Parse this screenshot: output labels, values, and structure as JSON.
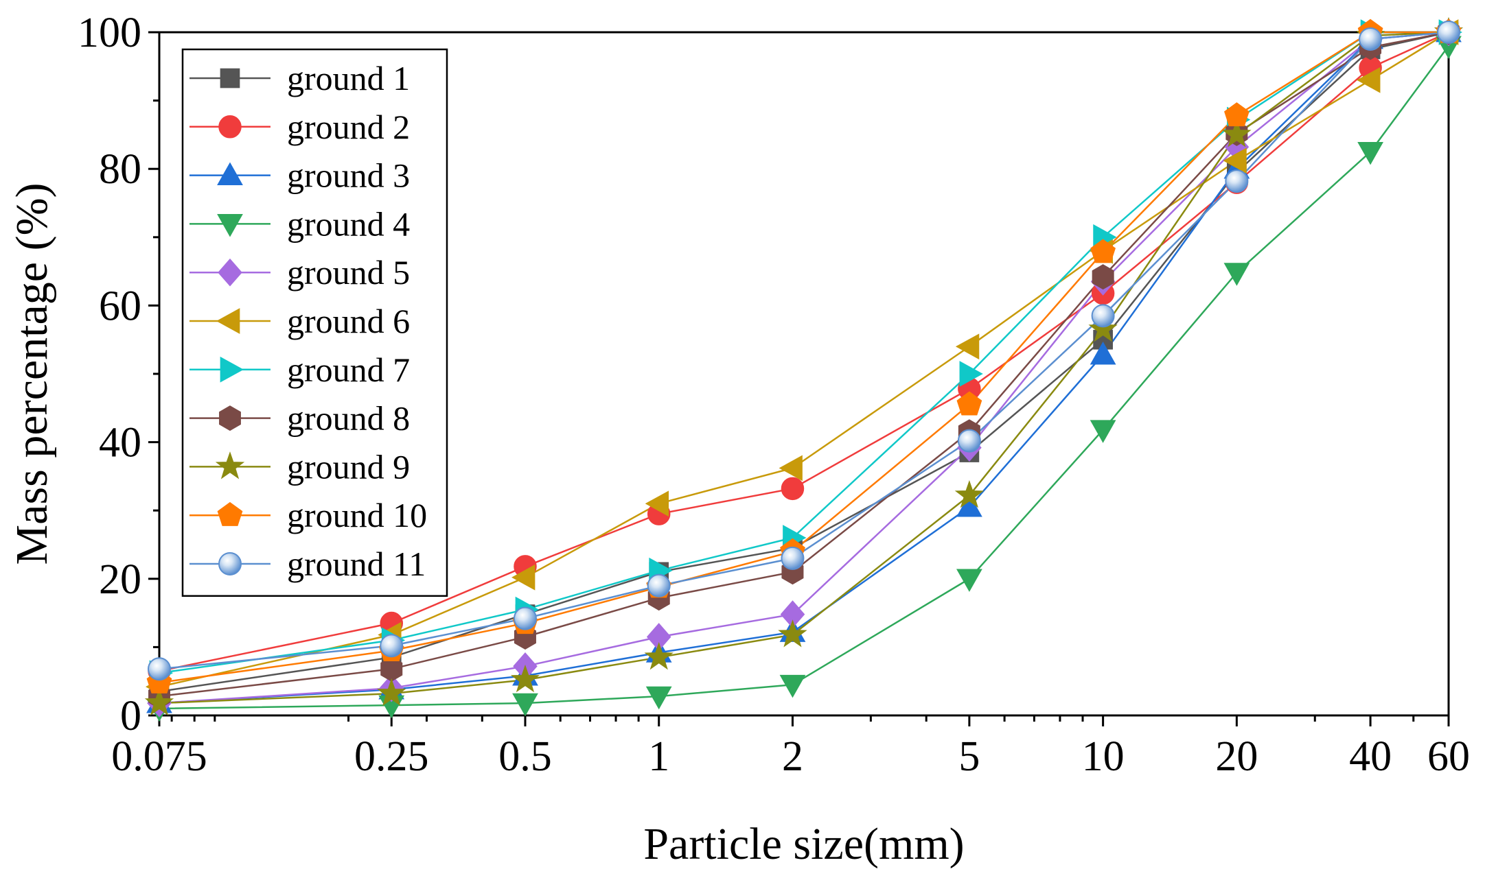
{
  "chart_data": {
    "type": "line",
    "title": "",
    "xlabel": "Particle size(mm)",
    "ylabel": "Mass percentage (%)",
    "xscale": "log",
    "xlim": [
      0.075,
      60
    ],
    "ylim": [
      0,
      100
    ],
    "grid": false,
    "legend_position": "top-left",
    "x_ticks": [
      {
        "value": 0.075,
        "label": "0.075"
      },
      {
        "value": 0.25,
        "label": "0.25"
      },
      {
        "value": 0.5,
        "label": "0.5"
      },
      {
        "value": 1,
        "label": "1"
      },
      {
        "value": 2,
        "label": "2"
      },
      {
        "value": 5,
        "label": "5"
      },
      {
        "value": 10,
        "label": "10"
      },
      {
        "value": 20,
        "label": "20"
      },
      {
        "value": 40,
        "label": "40"
      },
      {
        "value": 60,
        "label": "60"
      }
    ],
    "y_ticks": [
      {
        "value": 0,
        "label": "0"
      },
      {
        "value": 20,
        "label": "20"
      },
      {
        "value": 40,
        "label": "40"
      },
      {
        "value": 60,
        "label": "60"
      },
      {
        "value": 80,
        "label": "80"
      },
      {
        "value": 100,
        "label": "100"
      }
    ],
    "x": [
      0.075,
      0.25,
      0.5,
      1,
      2,
      5,
      10,
      20,
      40,
      60
    ],
    "series": [
      {
        "name": "ground 1",
        "color": "#555555",
        "marker": "square",
        "values": [
          3.5,
          8.5,
          14.8,
          21.0,
          24.5,
          38.5,
          55.0,
          79.5,
          97.5,
          100
        ]
      },
      {
        "name": "ground 2",
        "color": "#f03c3c",
        "marker": "circle",
        "values": [
          6.5,
          13.5,
          21.8,
          29.5,
          33.2,
          47.8,
          61.8,
          78.0,
          94.8,
          100
        ]
      },
      {
        "name": "ground 3",
        "color": "#1f6fd6",
        "marker": "triangle-up",
        "values": [
          1.8,
          3.8,
          5.8,
          9.2,
          12.2,
          30.5,
          52.8,
          80.0,
          99.0,
          100
        ]
      },
      {
        "name": "ground 4",
        "color": "#2ea85a",
        "marker": "triangle-down",
        "values": [
          1.0,
          1.5,
          1.8,
          2.8,
          4.5,
          20.0,
          41.8,
          64.8,
          82.5,
          98.0
        ]
      },
      {
        "name": "ground 5",
        "color": "#a66be0",
        "marker": "diamond",
        "values": [
          1.8,
          4.0,
          7.2,
          11.5,
          14.8,
          39.2,
          63.5,
          83.2,
          99.0,
          100
        ]
      },
      {
        "name": "ground 6",
        "color": "#c89a0a",
        "marker": "triangle-left",
        "values": [
          4.2,
          11.8,
          20.2,
          31.0,
          36.2,
          54.0,
          68.0,
          81.2,
          93.0,
          100
        ]
      },
      {
        "name": "ground 7",
        "color": "#10c8c8",
        "marker": "triangle-right",
        "values": [
          6.2,
          11.0,
          15.5,
          21.2,
          26.0,
          50.0,
          70.0,
          87.2,
          100,
          100
        ]
      },
      {
        "name": "ground 8",
        "color": "#7a4a46",
        "marker": "hexagon",
        "values": [
          2.8,
          6.8,
          11.5,
          17.2,
          21.0,
          41.5,
          64.2,
          85.2,
          97.8,
          100
        ]
      },
      {
        "name": "ground 9",
        "color": "#8a8a10",
        "marker": "star",
        "values": [
          1.8,
          3.2,
          5.2,
          8.5,
          11.8,
          32.2,
          56.5,
          85.0,
          99.5,
          100
        ]
      },
      {
        "name": "ground 10",
        "color": "#ff7a00",
        "marker": "pentagon",
        "values": [
          4.8,
          9.5,
          13.5,
          18.8,
          24.0,
          45.5,
          67.8,
          87.8,
          100,
          100
        ]
      },
      {
        "name": "ground 11",
        "color": "#5b8fd0",
        "marker": "sphere",
        "values": [
          6.8,
          10.2,
          14.2,
          19.0,
          23.0,
          40.2,
          58.5,
          78.2,
          99.0,
          100
        ]
      }
    ]
  }
}
